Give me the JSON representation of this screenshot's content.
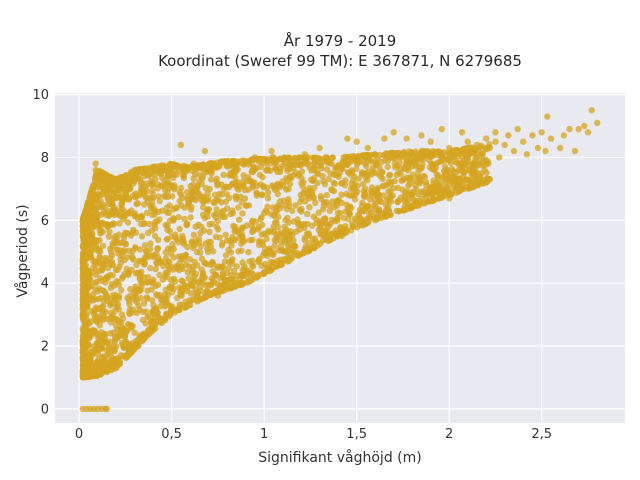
{
  "chart_data": {
    "type": "scatter",
    "title_line1": "År 1979 - 2019",
    "title_line2": "Koordinat (Sweref 99 TM): E 367871, N 6279685",
    "xlabel": "Signifikant våghöjd (m)",
    "ylabel": "Vågperiod (s)",
    "xlim": [
      -0.13,
      2.95
    ],
    "ylim": [
      -0.45,
      10.05
    ],
    "x_ticks": [
      0,
      0.5,
      1,
      1.5,
      2,
      2.5
    ],
    "x_tick_labels": [
      "0",
      "0,5",
      "1",
      "1,5",
      "2",
      "2,5"
    ],
    "y_ticks": [
      0,
      2,
      4,
      6,
      8,
      10
    ],
    "y_tick_labels": [
      "0",
      "2",
      "4",
      "6",
      "8",
      "10"
    ],
    "grid": true,
    "legend": "none",
    "marker_color": "#D4A420",
    "background_color": "#E9E9F0",
    "envelope": [
      {
        "x": 0.02,
        "lo": 1.0,
        "hi": 6.0
      },
      {
        "x": 0.1,
        "lo": 1.05,
        "hi": 7.6
      },
      {
        "x": 0.2,
        "lo": 1.3,
        "hi": 7.3
      },
      {
        "x": 0.3,
        "lo": 1.9,
        "hi": 7.6
      },
      {
        "x": 0.4,
        "lo": 2.5,
        "hi": 7.7
      },
      {
        "x": 0.5,
        "lo": 3.0,
        "hi": 7.8
      },
      {
        "x": 0.6,
        "lo": 3.3,
        "hi": 7.7
      },
      {
        "x": 0.7,
        "lo": 3.6,
        "hi": 7.8
      },
      {
        "x": 0.8,
        "lo": 3.8,
        "hi": 7.9
      },
      {
        "x": 0.9,
        "lo": 4.0,
        "hi": 7.9
      },
      {
        "x": 1.0,
        "lo": 4.3,
        "hi": 8.0
      },
      {
        "x": 1.2,
        "lo": 4.9,
        "hi": 8.0
      },
      {
        "x": 1.4,
        "lo": 5.5,
        "hi": 8.0
      },
      {
        "x": 1.6,
        "lo": 6.0,
        "hi": 8.1
      },
      {
        "x": 1.8,
        "lo": 6.4,
        "hi": 8.2
      },
      {
        "x": 2.0,
        "lo": 6.8,
        "hi": 8.2
      },
      {
        "x": 2.2,
        "lo": 7.2,
        "hi": 8.4
      },
      {
        "x": 2.4,
        "lo": 7.6,
        "hi": 8.8
      },
      {
        "x": 2.6,
        "lo": 8.0,
        "hi": 9.0
      },
      {
        "x": 2.8,
        "lo": 8.4,
        "hi": 9.3
      }
    ],
    "points": [
      {
        "x": 0.02,
        "y": 0
      },
      {
        "x": 0.04,
        "y": 0
      },
      {
        "x": 0.06,
        "y": 0
      },
      {
        "x": 0.08,
        "y": 0
      },
      {
        "x": 0.1,
        "y": 0
      },
      {
        "x": 0.12,
        "y": 0
      },
      {
        "x": 0.14,
        "y": 0
      },
      {
        "x": 0.15,
        "y": 0
      },
      {
        "x": 0.09,
        "y": 7.8
      },
      {
        "x": 0.09,
        "y": 7.6
      },
      {
        "x": 0.05,
        "y": 6.2
      },
      {
        "x": 0.05,
        "y": 4.4
      },
      {
        "x": 0.08,
        "y": 5.8
      },
      {
        "x": 0.02,
        "y": 3.8
      },
      {
        "x": 0.15,
        "y": 7.3
      },
      {
        "x": 0.28,
        "y": 7.5
      },
      {
        "x": 0.4,
        "y": 7.7
      },
      {
        "x": 0.55,
        "y": 7.7
      },
      {
        "x": 0.55,
        "y": 8.4
      },
      {
        "x": 0.62,
        "y": 7.8
      },
      {
        "x": 0.68,
        "y": 8.2
      },
      {
        "x": 0.95,
        "y": 8.0
      },
      {
        "x": 1.04,
        "y": 8.2
      },
      {
        "x": 1.22,
        "y": 8.1
      },
      {
        "x": 1.3,
        "y": 8.3
      },
      {
        "x": 1.43,
        "y": 8.0
      },
      {
        "x": 1.45,
        "y": 8.6
      },
      {
        "x": 1.5,
        "y": 8.5
      },
      {
        "x": 1.56,
        "y": 8.3
      },
      {
        "x": 1.65,
        "y": 8.6
      },
      {
        "x": 1.7,
        "y": 8.8
      },
      {
        "x": 1.77,
        "y": 8.6
      },
      {
        "x": 1.85,
        "y": 8.7
      },
      {
        "x": 1.9,
        "y": 8.5
      },
      {
        "x": 1.96,
        "y": 8.9
      },
      {
        "x": 2.0,
        "y": 8.3
      },
      {
        "x": 2.07,
        "y": 8.8
      },
      {
        "x": 2.1,
        "y": 8.5
      },
      {
        "x": 2.13,
        "y": 7.8
      },
      {
        "x": 2.15,
        "y": 8.4
      },
      {
        "x": 2.18,
        "y": 8.1
      },
      {
        "x": 2.2,
        "y": 8.6
      },
      {
        "x": 2.22,
        "y": 8.3
      },
      {
        "x": 2.25,
        "y": 8.8
      },
      {
        "x": 2.25,
        "y": 8.5
      },
      {
        "x": 2.27,
        "y": 8.0
      },
      {
        "x": 2.3,
        "y": 8.4
      },
      {
        "x": 2.32,
        "y": 8.7
      },
      {
        "x": 2.35,
        "y": 8.2
      },
      {
        "x": 2.37,
        "y": 8.9
      },
      {
        "x": 2.4,
        "y": 8.5
      },
      {
        "x": 2.42,
        "y": 8.1
      },
      {
        "x": 2.45,
        "y": 8.7
      },
      {
        "x": 2.48,
        "y": 8.3
      },
      {
        "x": 2.5,
        "y": 8.8
      },
      {
        "x": 2.52,
        "y": 8.2
      },
      {
        "x": 2.53,
        "y": 9.3
      },
      {
        "x": 2.55,
        "y": 8.6
      },
      {
        "x": 2.6,
        "y": 8.3
      },
      {
        "x": 2.62,
        "y": 8.7
      },
      {
        "x": 2.65,
        "y": 8.9
      },
      {
        "x": 2.68,
        "y": 8.2
      },
      {
        "x": 2.7,
        "y": 8.9
      },
      {
        "x": 2.73,
        "y": 9.0
      },
      {
        "x": 2.75,
        "y": 8.8
      },
      {
        "x": 2.77,
        "y": 9.5
      },
      {
        "x": 2.8,
        "y": 9.1
      },
      {
        "x": 2.0,
        "y": 6.7
      },
      {
        "x": 2.08,
        "y": 7.5
      },
      {
        "x": 1.42,
        "y": 5.5
      },
      {
        "x": 1.0,
        "y": 4.3
      },
      {
        "x": 1.05,
        "y": 4.5
      },
      {
        "x": 1.15,
        "y": 4.8
      },
      {
        "x": 0.75,
        "y": 3.6
      },
      {
        "x": 0.6,
        "y": 3.3
      },
      {
        "x": 0.32,
        "y": 2.0
      }
    ]
  }
}
